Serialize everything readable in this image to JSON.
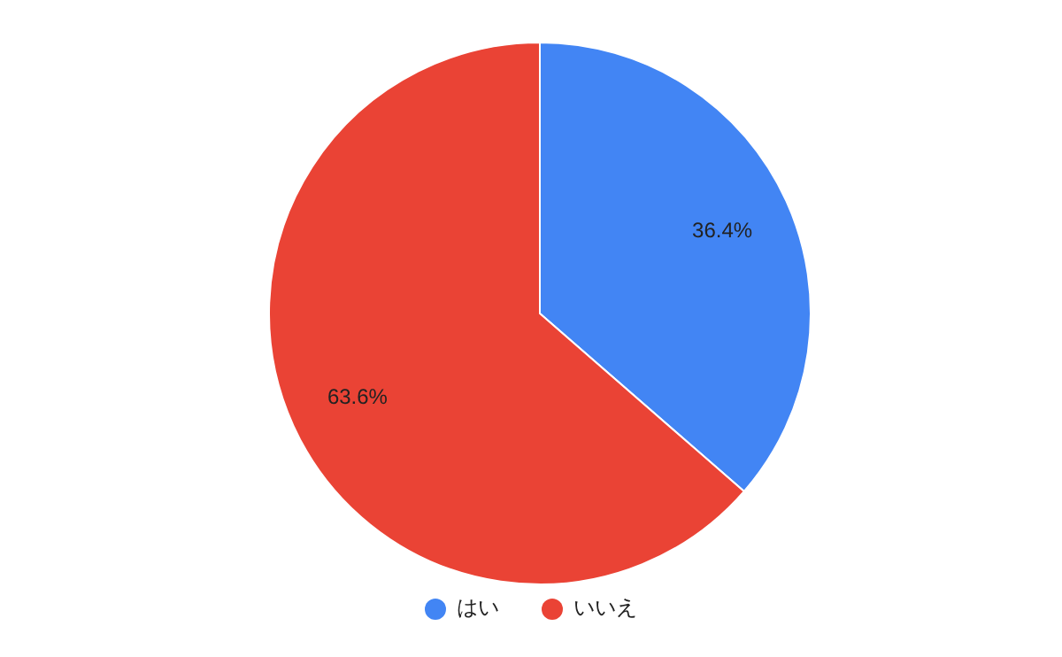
{
  "chart_data": {
    "type": "pie",
    "categories": [
      "はい",
      "いいえ"
    ],
    "values": [
      36.4,
      63.6
    ],
    "colors": [
      "#4285f4",
      "#ea4335"
    ],
    "value_labels": [
      "36.4%",
      "63.6%"
    ],
    "legend": "bottom"
  }
}
